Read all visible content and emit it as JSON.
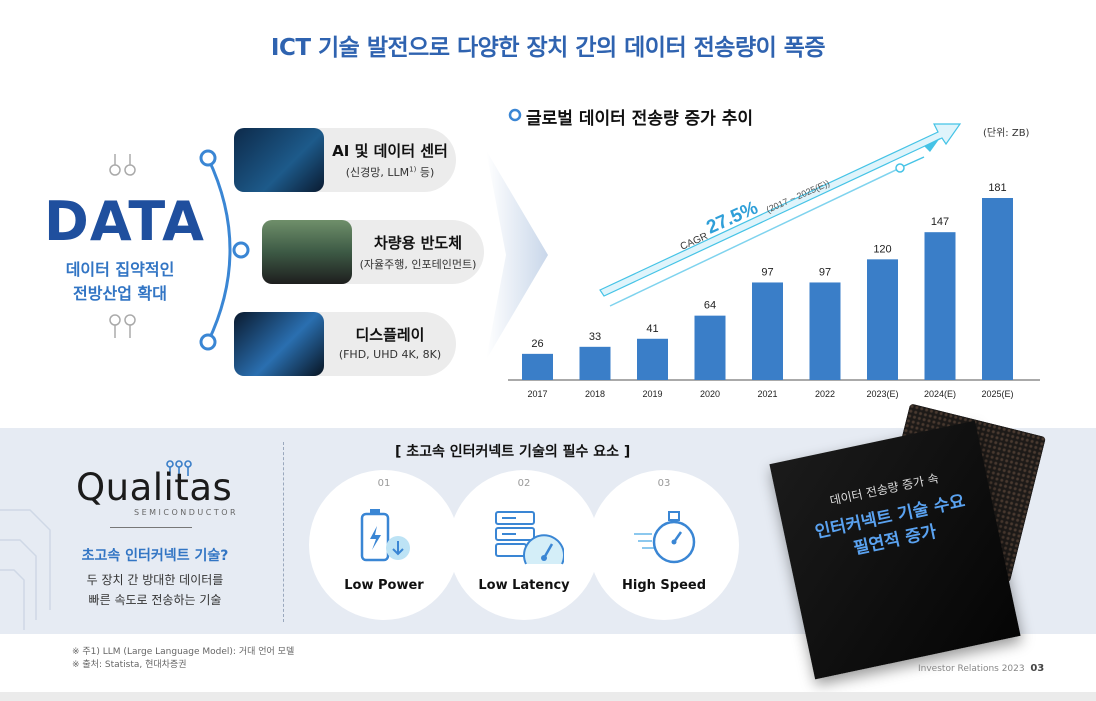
{
  "header": {
    "title": "ICT 기술 발전으로 다양한 장치 간의 데이터 전송량이 폭증"
  },
  "left": {
    "big_word": "DATA",
    "caption_line1": "데이터 집약적인",
    "caption_line2": "전방산업 확대"
  },
  "pills": [
    {
      "title": "AI 및 데이터 센터",
      "sub_prefix": "(신경망, LLM",
      "sub_sup": "1)",
      "sub_suffix": " 등)"
    },
    {
      "title": "차량용 반도체",
      "sub": "(자율주행, 인포테인먼트)"
    },
    {
      "title": "디스플레이",
      "sub": "(FHD, UHD 4K, 8K)"
    }
  ],
  "chart_header": {
    "title": "글로벌 데이터 전송량 증가 추이",
    "unit": "(단위: ZB)"
  },
  "chart_data": {
    "type": "bar",
    "title": "글로벌 데이터 전송량 증가 추이",
    "unit": "(단위: ZB)",
    "categories": [
      "2017",
      "2018",
      "2019",
      "2020",
      "2021",
      "2022",
      "2023(E)",
      "2024(E)",
      "2025(E)"
    ],
    "values": [
      26,
      33,
      41,
      64,
      97,
      97,
      120,
      147,
      181
    ],
    "ylim": [
      0,
      181
    ],
    "annotation": {
      "label": "CAGR",
      "value": "27.5%",
      "period": "(2017 ~ 2025(E))"
    },
    "bar_color": "#3a7ec8"
  },
  "qualitas": {
    "logo_text": "Qualitas",
    "logo_sub": "SEMICONDUCTOR",
    "caption_title": "초고속 인터커넥트 기술?",
    "caption_line1": "두 장치 간 방대한 데이터를",
    "caption_line2": "빠른 속도로 전송하는 기술"
  },
  "requirements": {
    "title": "[ 초고속 인터커넥트 기술의 필수 요소 ]",
    "items": [
      {
        "num": "01",
        "label": "Low Power",
        "icon": "battery-icon"
      },
      {
        "num": "02",
        "label": "Low Latency",
        "icon": "server-gauge-icon"
      },
      {
        "num": "03",
        "label": "High Speed",
        "icon": "stopwatch-icon"
      }
    ]
  },
  "chip": {
    "line1": "데이터 전송량 증가 속",
    "line2": "인터커넥트 기술 수요",
    "line3": "필연적 증가"
  },
  "notes": {
    "n1": "※ 주1) LLM (Large Language Model): 거대 언어 모델",
    "n2": "※ 출처: Statista, 현대차증권"
  },
  "footer": {
    "text": "Investor Relations 2023",
    "page": "03"
  },
  "colors": {
    "accent": "#2f63b0",
    "bar": "#3a7ec8",
    "arrow": "#45c3e6"
  }
}
